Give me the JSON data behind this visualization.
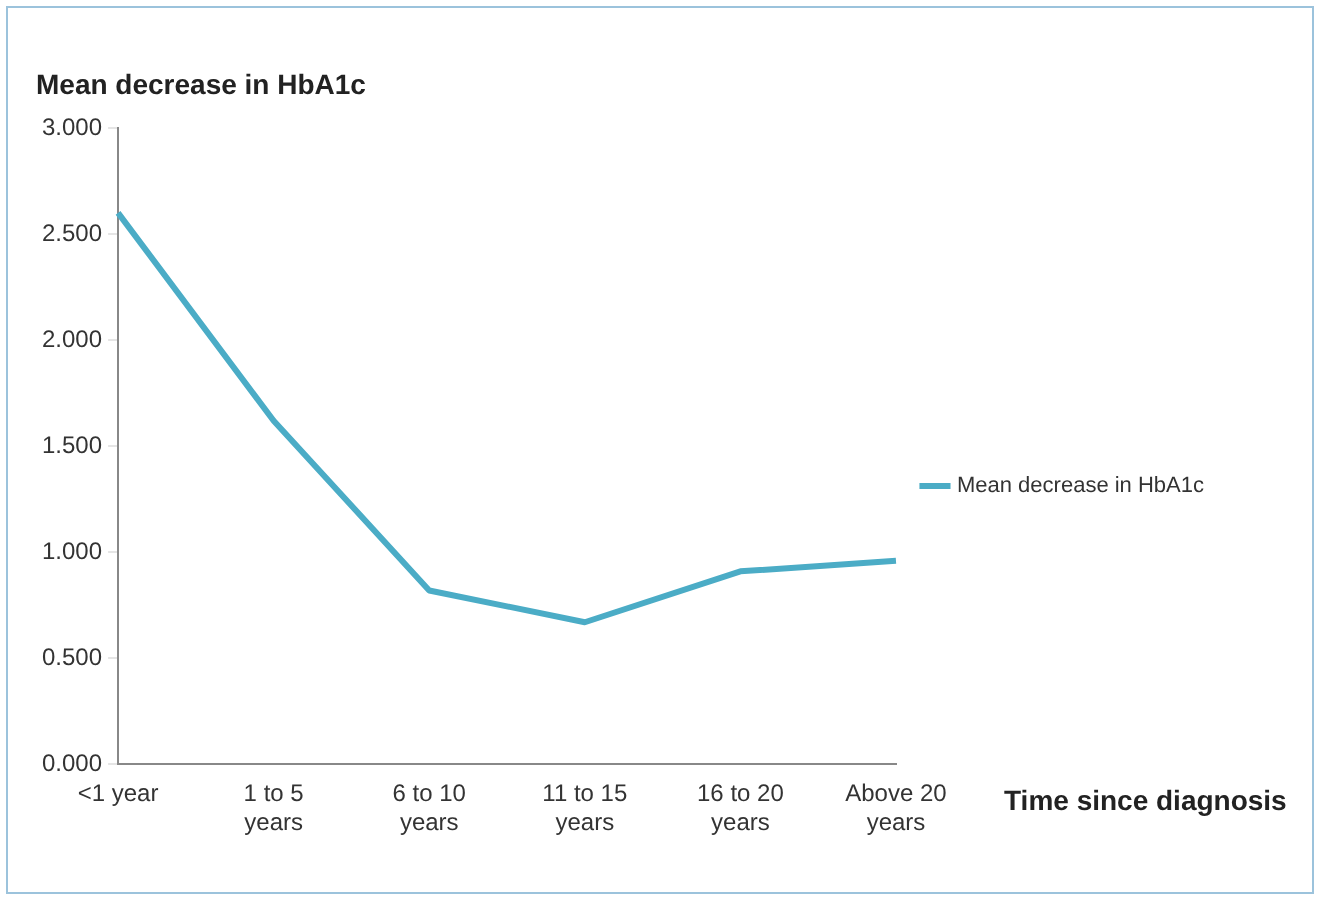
{
  "chart_data": {
    "type": "line",
    "title": "Mean decrease in HbA1c",
    "xlabel": "Time since diagnosis",
    "categories": [
      "<1 year",
      "1 to 5 years",
      "6 to 10 years",
      "11 to 15 years",
      "16 to 20 years",
      "Above 20 years"
    ],
    "series": [
      {
        "name": "Mean decrease in HbA1c",
        "color": "#4bacc6",
        "values": [
          2.6,
          1.62,
          0.82,
          0.67,
          0.91,
          0.96
        ]
      }
    ],
    "ylim": [
      0,
      3
    ],
    "yticks": [
      {
        "value": 0,
        "label": "0.000"
      },
      {
        "value": 0.5,
        "label": "0.500"
      },
      {
        "value": 1,
        "label": "1.000"
      },
      {
        "value": 1.5,
        "label": "1.500"
      },
      {
        "value": 2,
        "label": "2.000"
      },
      {
        "value": 2.5,
        "label": "2.500"
      },
      {
        "value": 3,
        "label": "3.000"
      }
    ],
    "grid": false,
    "legend": "right",
    "marker": "none",
    "line_style": "solid"
  }
}
